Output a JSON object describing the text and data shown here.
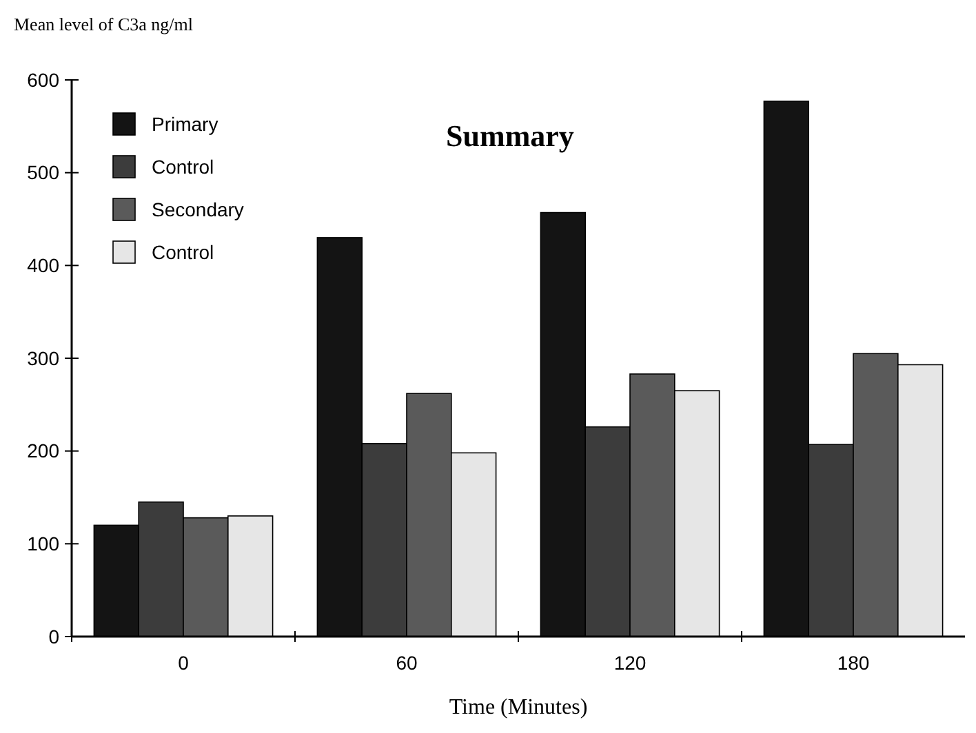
{
  "chart_data": {
    "type": "bar",
    "title": "Summary",
    "xlabel": "Time (Minutes)",
    "ylabel": "Mean level of C3a ng/ml",
    "categories": [
      "0",
      "60",
      "120",
      "180"
    ],
    "series": [
      {
        "name": "Primary",
        "color": "#141414",
        "values": [
          120,
          430,
          457,
          577
        ]
      },
      {
        "name": "Control",
        "color": "#3c3c3c",
        "values": [
          145,
          208,
          226,
          207
        ]
      },
      {
        "name": "Secondary",
        "color": "#5a5a5a",
        "values": [
          128,
          262,
          283,
          305
        ]
      },
      {
        "name": "Control",
        "color": "#e6e6e6",
        "values": [
          130,
          198,
          265,
          293
        ]
      }
    ],
    "ylim": [
      0,
      600
    ],
    "yticks": [
      0,
      100,
      200,
      300,
      400,
      500,
      600
    ],
    "grid": false,
    "legend": "top left"
  }
}
